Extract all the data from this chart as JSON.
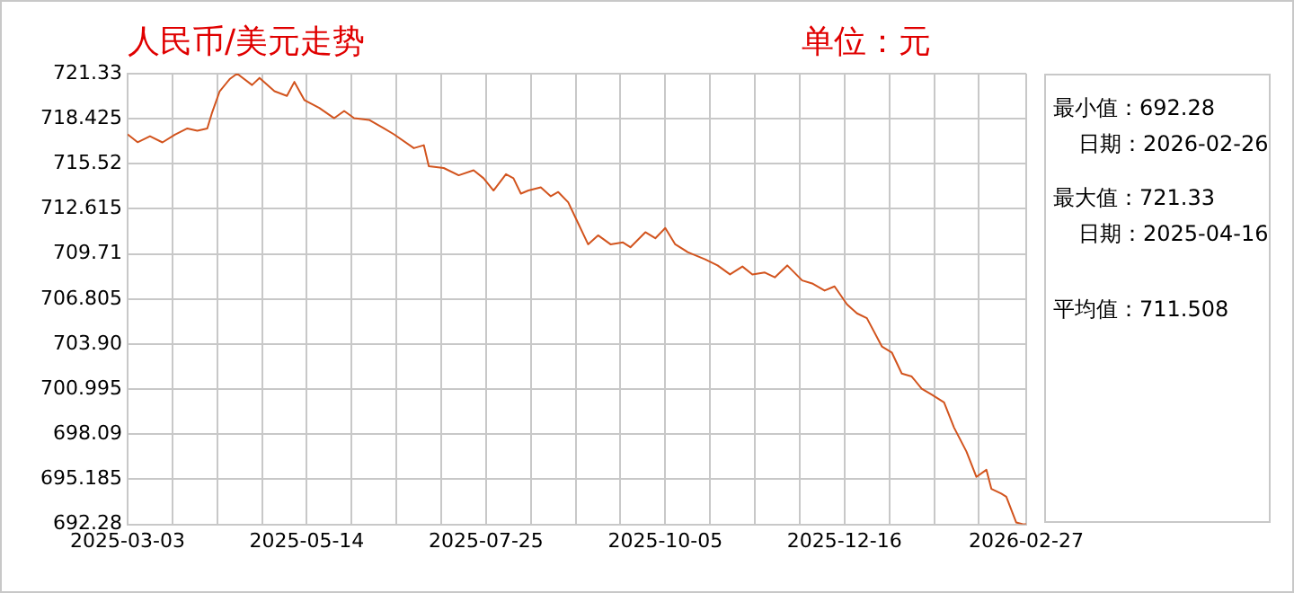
{
  "chart_data": {
    "type": "line",
    "title": "人民币/美元走势",
    "annotations": [
      "单位：元",
      "最小值：692.28",
      "日期：2026-02-26",
      "最大值：721.33",
      "日期：2025-04-16",
      "平均值：711.508"
    ],
    "x": [
      "2025-03-03",
      "2025-03-07",
      "2025-03-12",
      "2025-03-17",
      "2025-03-22",
      "2025-03-27",
      "2025-03-31",
      "2025-04-04",
      "2025-04-06",
      "2025-04-09",
      "2025-04-13",
      "2025-04-16",
      "2025-04-22",
      "2025-04-25",
      "2025-05-01",
      "2025-05-06",
      "2025-05-09",
      "2025-05-13",
      "2025-05-19",
      "2025-05-25",
      "2025-05-29",
      "2025-06-02",
      "2025-06-08",
      "2025-06-14",
      "2025-06-18",
      "2025-06-26",
      "2025-06-30",
      "2025-07-02",
      "2025-07-08",
      "2025-07-14",
      "2025-07-20",
      "2025-07-24",
      "2025-07-28",
      "2025-08-02",
      "2025-08-05",
      "2025-08-08",
      "2025-08-11",
      "2025-08-16",
      "2025-08-20",
      "2025-08-23",
      "2025-08-27",
      "2025-08-31",
      "2025-09-04",
      "2025-09-08",
      "2025-09-13",
      "2025-09-18",
      "2025-09-21",
      "2025-09-27",
      "2025-10-01",
      "2025-10-05",
      "2025-10-09",
      "2025-10-14",
      "2025-10-21",
      "2025-10-26",
      "2025-10-31",
      "2025-11-05",
      "2025-11-09",
      "2025-11-14",
      "2025-11-18",
      "2025-11-23",
      "2025-11-29",
      "2025-12-03",
      "2025-12-08",
      "2025-12-12",
      "2025-12-17",
      "2025-12-21",
      "2025-12-25",
      "2025-12-31",
      "2026-01-04",
      "2026-01-08",
      "2026-01-12",
      "2026-01-16",
      "2026-01-20",
      "2026-01-25",
      "2026-01-29",
      "2026-02-03",
      "2026-02-07",
      "2026-02-11",
      "2026-02-13",
      "2026-02-17",
      "2026-02-19",
      "2026-02-23",
      "2026-02-26",
      "2026-02-27"
    ],
    "series": [
      {
        "color": "#d2541e",
        "values": [
          717.42,
          716.91,
          717.3,
          716.9,
          717.4,
          717.8,
          717.65,
          717.8,
          718.85,
          720.2,
          720.98,
          721.33,
          720.6,
          721.06,
          720.2,
          719.9,
          720.8,
          719.63,
          719.12,
          718.46,
          718.93,
          718.46,
          718.35,
          717.8,
          717.42,
          716.53,
          716.72,
          715.37,
          715.25,
          714.78,
          715.1,
          714.59,
          713.8,
          714.85,
          714.59,
          713.6,
          713.8,
          714.0,
          713.43,
          713.7,
          713.04,
          711.69,
          710.33,
          710.91,
          710.33,
          710.45,
          710.14,
          711.11,
          710.72,
          711.38,
          710.33,
          709.83,
          709.36,
          708.97,
          708.39,
          708.9,
          708.39,
          708.51,
          708.2,
          708.97,
          708.0,
          707.81,
          707.35,
          707.62,
          706.46,
          705.88,
          705.57,
          703.75,
          703.36,
          702.0,
          701.81,
          701.03,
          700.65,
          700.14,
          698.52,
          696.97,
          695.34,
          695.8,
          694.57,
          694.26,
          694.06,
          692.4,
          692.28,
          692.28
        ]
      }
    ],
    "xlim": [
      "2025-03-03",
      "2026-02-27"
    ],
    "xticks": [
      "2025-03-03",
      {
        "value": "2025-03-21",
        "label": null
      },
      {
        "value": "2025-04-08",
        "label": null
      },
      {
        "value": "2025-04-26",
        "label": null
      },
      "2025-05-14",
      {
        "value": "2025-06-01",
        "label": null
      },
      {
        "value": "2025-06-19",
        "label": null
      },
      {
        "value": "2025-07-07",
        "label": null
      },
      "2025-07-25",
      {
        "value": "2025-08-12",
        "label": null
      },
      {
        "value": "2025-08-30",
        "label": null
      },
      {
        "value": "2025-09-17",
        "label": null
      },
      "2025-10-05",
      {
        "value": "2025-10-23",
        "label": null
      },
      {
        "value": "2025-11-10",
        "label": null
      },
      {
        "value": "2025-11-28",
        "label": null
      },
      "2025-12-16",
      {
        "value": "2026-01-03",
        "label": null
      },
      {
        "value": "2026-01-21",
        "label": null
      },
      {
        "value": "2026-02-08",
        "label": null
      },
      "2026-02-27"
    ],
    "ylim": [
      692.28,
      721.33
    ],
    "yticks": [
      692.28,
      695.185,
      698.09,
      700.995,
      {
        "value": 703.9,
        "label": "703.90"
      },
      706.805,
      709.71,
      712.615,
      715.52,
      718.425,
      721.33
    ],
    "grid": true,
    "marker": "none",
    "line_style": "solid"
  }
}
